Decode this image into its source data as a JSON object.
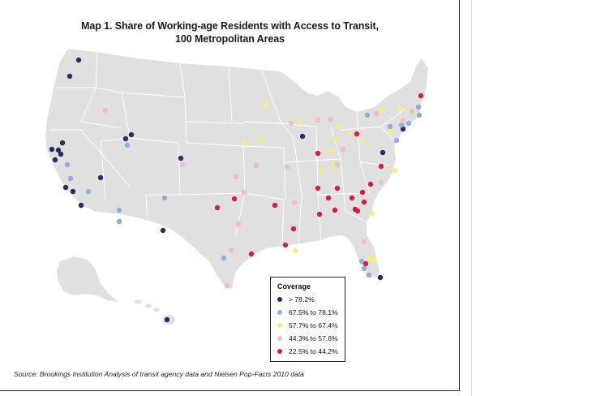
{
  "map": {
    "title_line1": "Map 1. Share of Working-age Residents with Access to Transit,",
    "title_line2": "100 Metropolitan Areas",
    "source": "Source: Brookings Institution Analysis of transit agency data and Nielsen Pop-Facts 2010 data"
  },
  "legend": {
    "title": "Coverage",
    "items": [
      {
        "label": "> 78.2%",
        "color": "#2b2b66"
      },
      {
        "label": "67.5% to 78.1%",
        "color": "#8fb0dc"
      },
      {
        "label": "57.7% to 67.4%",
        "color": "#f4ef78"
      },
      {
        "label": "44.3% to 57.6%",
        "color": "#f3bcc2"
      },
      {
        "label": "22.5% to 44.2%",
        "color": "#d5223c"
      }
    ]
  },
  "colors": {
    "land": "#e0e0e0",
    "border": "#ffffff",
    "frame": "#2b2b2b"
  }
}
